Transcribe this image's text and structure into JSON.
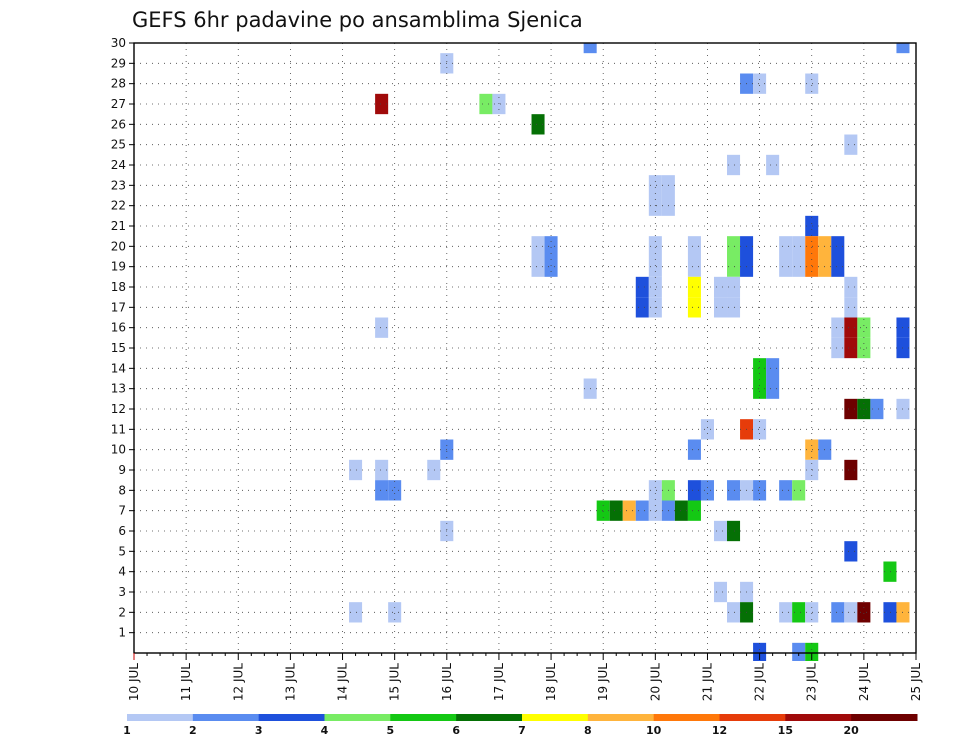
{
  "chart_data": {
    "type": "heatmap",
    "title": "GEFS 6hr padavine po ansamblima Sjenica",
    "xlabel": "",
    "ylabel": "",
    "x_ticks": [
      "10 JUL",
      "11 JUL",
      "12 JUL",
      "13 JUL",
      "14 JUL",
      "15 JUL",
      "16 JUL",
      "17 JUL",
      "18 JUL",
      "19 JUL",
      "20 JUL",
      "21 JUL",
      "22 JUL",
      "23 JUL",
      "24 JUL",
      "25 JUL"
    ],
    "y_ticks": [
      "1",
      "2",
      "3",
      "4",
      "5",
      "6",
      "7",
      "8",
      "9",
      "10",
      "11",
      "12",
      "13",
      "14",
      "15",
      "16",
      "17",
      "18",
      "19",
      "20",
      "21",
      "22",
      "23",
      "24",
      "25",
      "26",
      "27",
      "28",
      "29",
      "30"
    ],
    "x_range_days": [
      10,
      25
    ],
    "y_range_members": [
      0,
      30
    ],
    "grid": true,
    "legend": {
      "placement": "bottom",
      "labels": [
        "1",
        "2",
        "3",
        "4",
        "5",
        "6",
        "7",
        "8",
        "10",
        "12",
        "15",
        "20"
      ],
      "colors": [
        "#b4c8f4",
        "#5a8cf0",
        "#1e50dc",
        "#78ec64",
        "#14c814",
        "#057005",
        "#ffff00",
        "#ffb43c",
        "#ff780a",
        "#e63c0a",
        "#a00a0a",
        "#6e0000"
      ]
    },
    "cells": [
      {
        "day": 18.75,
        "member": 30,
        "level": 2
      },
      {
        "day": 24.75,
        "member": 30,
        "level": 2
      },
      {
        "day": 16,
        "member": 29,
        "level": 1
      },
      {
        "day": 21.75,
        "member": 28,
        "level": 2
      },
      {
        "day": 22,
        "member": 28,
        "level": 1
      },
      {
        "day": 23,
        "member": 28,
        "level": 1
      },
      {
        "day": 14.75,
        "member": 27,
        "level": 11
      },
      {
        "day": 16.75,
        "member": 27,
        "level": 4
      },
      {
        "day": 17,
        "member": 27,
        "level": 1
      },
      {
        "day": 17.75,
        "member": 26,
        "level": 6
      },
      {
        "day": 23.75,
        "member": 25,
        "level": 1
      },
      {
        "day": 21.5,
        "member": 24,
        "level": 1
      },
      {
        "day": 22.25,
        "member": 24,
        "level": 1
      },
      {
        "day": 20,
        "member": 23,
        "level": 1
      },
      {
        "day": 20.25,
        "member": 23,
        "level": 1
      },
      {
        "day": 20,
        "member": 22,
        "level": 1
      },
      {
        "day": 20.25,
        "member": 22,
        "level": 1
      },
      {
        "day": 23,
        "member": 21,
        "level": 3
      },
      {
        "day": 17.75,
        "member": 20,
        "level": 1
      },
      {
        "day": 18,
        "member": 20,
        "level": 2
      },
      {
        "day": 20,
        "member": 20,
        "level": 1
      },
      {
        "day": 20.75,
        "member": 20,
        "level": 1
      },
      {
        "day": 21.5,
        "member": 20,
        "level": 4
      },
      {
        "day": 21.75,
        "member": 20,
        "level": 3
      },
      {
        "day": 22.5,
        "member": 20,
        "level": 1
      },
      {
        "day": 22.75,
        "member": 20,
        "level": 1
      },
      {
        "day": 23,
        "member": 20,
        "level": 9
      },
      {
        "day": 23.25,
        "member": 20,
        "level": 8
      },
      {
        "day": 23.5,
        "member": 20,
        "level": 3
      },
      {
        "day": 17.75,
        "member": 19,
        "level": 1
      },
      {
        "day": 18,
        "member": 19,
        "level": 2
      },
      {
        "day": 20,
        "member": 19,
        "level": 1
      },
      {
        "day": 20.75,
        "member": 19,
        "level": 1
      },
      {
        "day": 21.5,
        "member": 19,
        "level": 4
      },
      {
        "day": 21.75,
        "member": 19,
        "level": 3
      },
      {
        "day": 22.5,
        "member": 19,
        "level": 1
      },
      {
        "day": 22.75,
        "member": 19,
        "level": 1
      },
      {
        "day": 23,
        "member": 19,
        "level": 9
      },
      {
        "day": 23.25,
        "member": 19,
        "level": 8
      },
      {
        "day": 23.5,
        "member": 19,
        "level": 3
      },
      {
        "day": 19.75,
        "member": 18,
        "level": 3
      },
      {
        "day": 20,
        "member": 18,
        "level": 1
      },
      {
        "day": 20.75,
        "member": 18,
        "level": 7
      },
      {
        "day": 21.25,
        "member": 18,
        "level": 1
      },
      {
        "day": 21.5,
        "member": 18,
        "level": 1
      },
      {
        "day": 23.75,
        "member": 18,
        "level": 1
      },
      {
        "day": 19.75,
        "member": 17,
        "level": 3
      },
      {
        "day": 20,
        "member": 17,
        "level": 1
      },
      {
        "day": 20.75,
        "member": 17,
        "level": 7
      },
      {
        "day": 21.25,
        "member": 17,
        "level": 1
      },
      {
        "day": 21.5,
        "member": 17,
        "level": 1
      },
      {
        "day": 23.75,
        "member": 17,
        "level": 1
      },
      {
        "day": 14.75,
        "member": 16,
        "level": 1
      },
      {
        "day": 23.5,
        "member": 16,
        "level": 1
      },
      {
        "day": 23.75,
        "member": 16,
        "level": 11
      },
      {
        "day": 24,
        "member": 16,
        "level": 4
      },
      {
        "day": 24.75,
        "member": 16,
        "level": 3
      },
      {
        "day": 23.5,
        "member": 15,
        "level": 1
      },
      {
        "day": 23.75,
        "member": 15,
        "level": 11
      },
      {
        "day": 24,
        "member": 15,
        "level": 4
      },
      {
        "day": 24.75,
        "member": 15,
        "level": 3
      },
      {
        "day": 18.75,
        "member": 13,
        "level": 1
      },
      {
        "day": 22,
        "member": 14,
        "level": 5
      },
      {
        "day": 22.25,
        "member": 14,
        "level": 2
      },
      {
        "day": 22,
        "member": 13,
        "level": 5
      },
      {
        "day": 22.25,
        "member": 13,
        "level": 2
      },
      {
        "day": 23.75,
        "member": 12,
        "level": 12
      },
      {
        "day": 24,
        "member": 12,
        "level": 6
      },
      {
        "day": 24.25,
        "member": 12,
        "level": 2
      },
      {
        "day": 24.75,
        "member": 12,
        "level": 1
      },
      {
        "day": 21,
        "member": 11,
        "level": 1
      },
      {
        "day": 21.75,
        "member": 11,
        "level": 10
      },
      {
        "day": 22,
        "member": 11,
        "level": 1
      },
      {
        "day": 16,
        "member": 10,
        "level": 2
      },
      {
        "day": 20.75,
        "member": 10,
        "level": 2
      },
      {
        "day": 23,
        "member": 10,
        "level": 8
      },
      {
        "day": 23.25,
        "member": 10,
        "level": 2
      },
      {
        "day": 14.25,
        "member": 9,
        "level": 1
      },
      {
        "day": 14.75,
        "member": 9,
        "level": 1
      },
      {
        "day": 15.75,
        "member": 9,
        "level": 1
      },
      {
        "day": 23,
        "member": 9,
        "level": 1
      },
      {
        "day": 23.75,
        "member": 9,
        "level": 12
      },
      {
        "day": 14.75,
        "member": 8,
        "level": 2
      },
      {
        "day": 15,
        "member": 8,
        "level": 2
      },
      {
        "day": 20,
        "member": 8,
        "level": 1
      },
      {
        "day": 20.25,
        "member": 8,
        "level": 4
      },
      {
        "day": 20.75,
        "member": 8,
        "level": 3
      },
      {
        "day": 21,
        "member": 8,
        "level": 2
      },
      {
        "day": 21.5,
        "member": 8,
        "level": 2
      },
      {
        "day": 21.75,
        "member": 8,
        "level": 1
      },
      {
        "day": 22,
        "member": 8,
        "level": 2
      },
      {
        "day": 22.5,
        "member": 8,
        "level": 2
      },
      {
        "day": 22.75,
        "member": 8,
        "level": 4
      },
      {
        "day": 19,
        "member": 7,
        "level": 5
      },
      {
        "day": 19.25,
        "member": 7,
        "level": 6
      },
      {
        "day": 19.5,
        "member": 7,
        "level": 8
      },
      {
        "day": 19.75,
        "member": 7,
        "level": 2
      },
      {
        "day": 20,
        "member": 7,
        "level": 1
      },
      {
        "day": 20.25,
        "member": 7,
        "level": 2
      },
      {
        "day": 20.5,
        "member": 7,
        "level": 6
      },
      {
        "day": 20.75,
        "member": 7,
        "level": 5
      },
      {
        "day": 16,
        "member": 6,
        "level": 1
      },
      {
        "day": 21.25,
        "member": 6,
        "level": 1
      },
      {
        "day": 21.5,
        "member": 6,
        "level": 6
      },
      {
        "day": 23.75,
        "member": 5,
        "level": 3
      },
      {
        "day": 24.5,
        "member": 4,
        "level": 5
      },
      {
        "day": 21.25,
        "member": 3,
        "level": 1
      },
      {
        "day": 21.75,
        "member": 3,
        "level": 1
      },
      {
        "day": 14.25,
        "member": 2,
        "level": 1
      },
      {
        "day": 15,
        "member": 2,
        "level": 1
      },
      {
        "day": 21.5,
        "member": 2,
        "level": 1
      },
      {
        "day": 21.75,
        "member": 2,
        "level": 6
      },
      {
        "day": 22.5,
        "member": 2,
        "level": 1
      },
      {
        "day": 22.75,
        "member": 2,
        "level": 5
      },
      {
        "day": 23,
        "member": 2,
        "level": 1
      },
      {
        "day": 23.5,
        "member": 2,
        "level": 2
      },
      {
        "day": 23.75,
        "member": 2,
        "level": 1
      },
      {
        "day": 24,
        "member": 2,
        "level": 12
      },
      {
        "day": 24.5,
        "member": 2,
        "level": 3
      },
      {
        "day": 24.75,
        "member": 2,
        "level": 8
      },
      {
        "day": 22,
        "member": 0,
        "level": 3
      },
      {
        "day": 22.75,
        "member": 0,
        "level": 2
      },
      {
        "day": 23,
        "member": 0,
        "level": 5
      }
    ]
  }
}
